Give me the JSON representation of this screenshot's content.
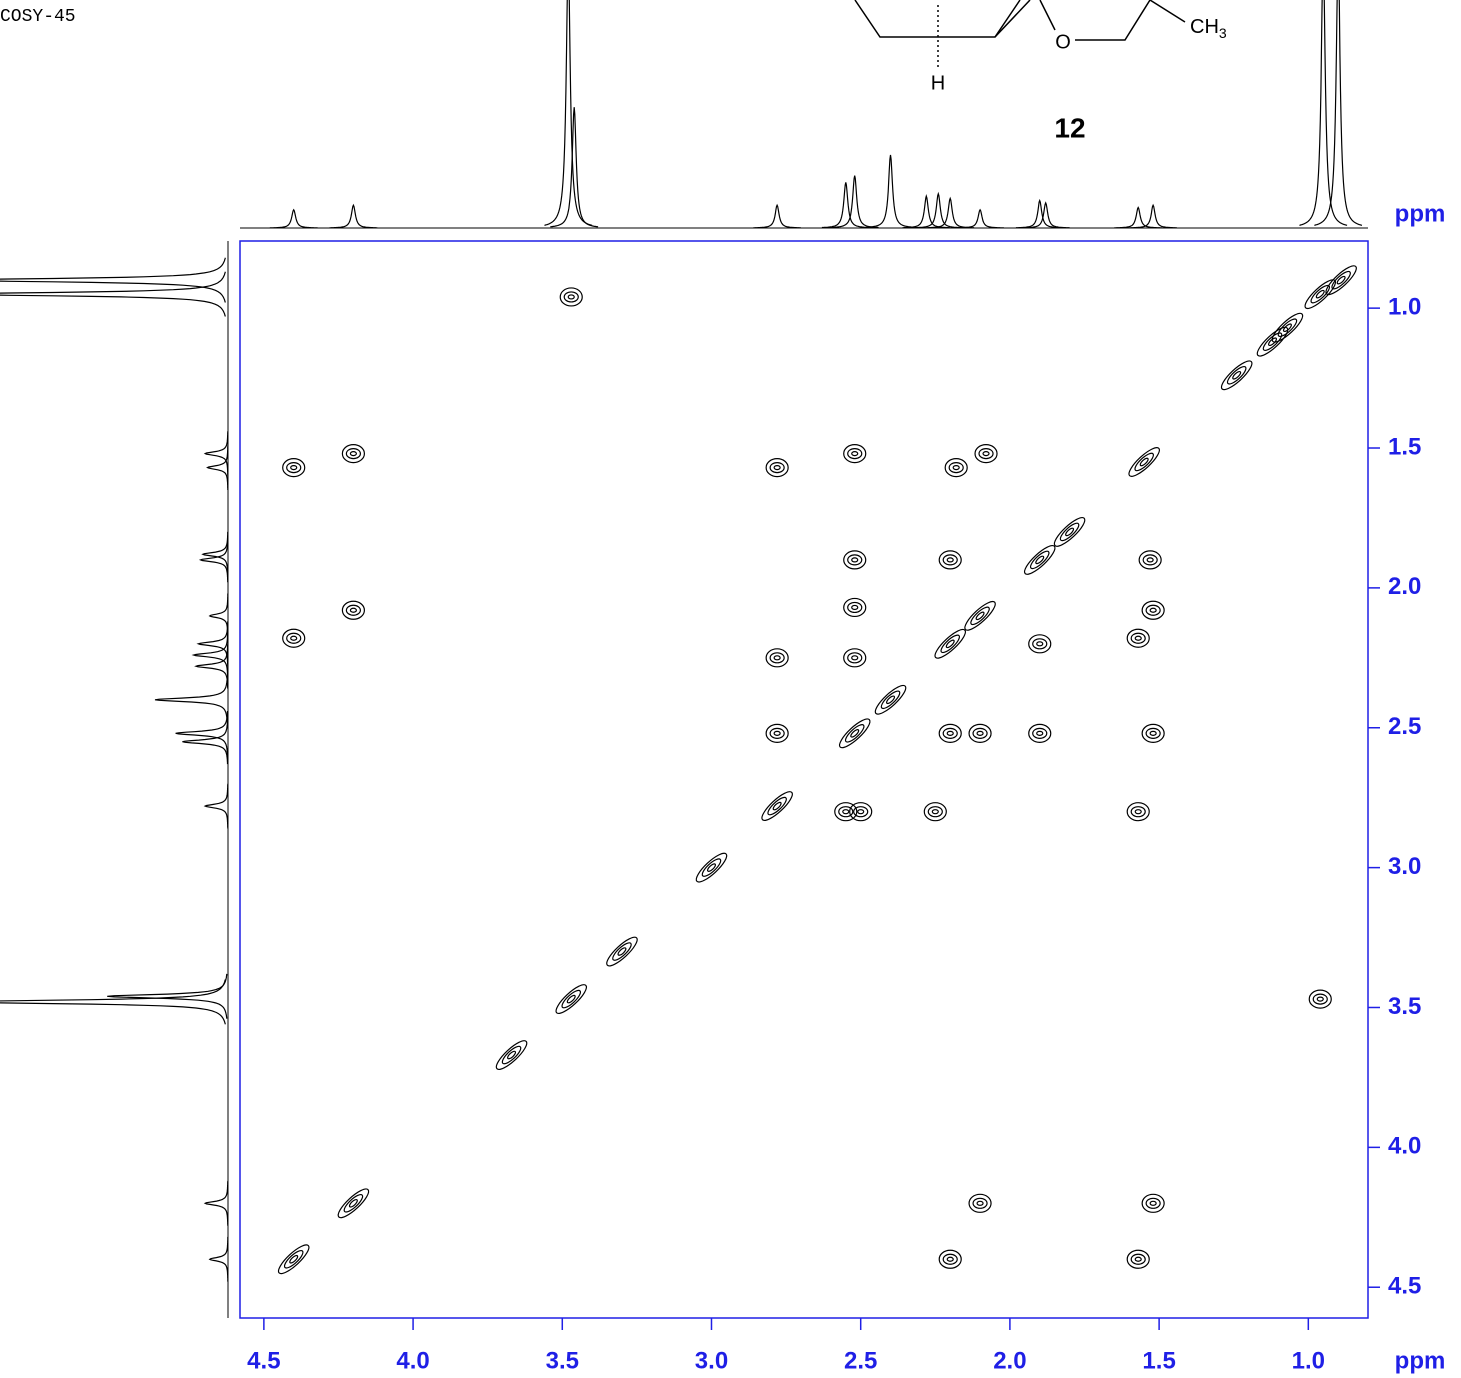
{
  "chart_data": {
    "type": "scatter",
    "title": "COSY-45",
    "x_label": "ppm",
    "y_label": "ppm",
    "xlim": [
      4.58,
      0.8
    ],
    "ylim": [
      0.76,
      4.61
    ],
    "xticks": [
      4.5,
      {
        "value": 4,
        "label": "4.0"
      },
      3.5,
      {
        "value": 3,
        "label": "3.0"
      },
      2.5,
      {
        "value": 2,
        "label": "2.0"
      },
      1.5,
      {
        "value": 1,
        "label": "1.0"
      }
    ],
    "yticks": [
      {
        "value": 1,
        "label": "1.0"
      },
      1.5,
      {
        "value": 2,
        "label": "2.0"
      },
      2.5,
      {
        "value": 3,
        "label": "3.0"
      },
      3.5,
      {
        "value": 4,
        "label": "4.0"
      },
      4.5
    ],
    "x": [
      0.89,
      0.96,
      1.07,
      1.12,
      1.24,
      1.55,
      1.8,
      1.9,
      2.1,
      2.2,
      2.4,
      2.52,
      2.78,
      3.0,
      3.3,
      3.47,
      3.67,
      4.2,
      4.4,
      4.4,
      4.2,
      4.4,
      4.2,
      2.78,
      2.52,
      2.18,
      2.08,
      2.52,
      2.2,
      1.53,
      2.52,
      1.52,
      1.57,
      1.9,
      2.78,
      2.52,
      2.78,
      2.2,
      2.1,
      1.9,
      1.52,
      2.55,
      2.5,
      2.25,
      1.57,
      2.1,
      1.52,
      2.2,
      1.57,
      3.47,
      0.96
    ],
    "y": [
      0.9,
      0.95,
      1.07,
      1.12,
      1.24,
      1.55,
      1.8,
      1.9,
      2.1,
      2.2,
      2.4,
      2.52,
      2.78,
      3.0,
      3.3,
      3.47,
      3.67,
      4.2,
      4.4,
      1.57,
      1.52,
      2.18,
      2.08,
      1.57,
      1.52,
      1.57,
      1.52,
      1.9,
      1.9,
      1.9,
      2.07,
      2.08,
      2.18,
      2.2,
      2.25,
      2.25,
      2.52,
      2.52,
      2.52,
      2.52,
      2.52,
      2.8,
      2.8,
      2.8,
      2.8,
      4.2,
      4.2,
      4.4,
      4.4,
      0.96,
      3.47
    ],
    "color": "#000000",
    "axis_color": "#1f1fe6",
    "projection": {
      "ppm": [
        4.4,
        4.2,
        3.48,
        3.46,
        2.78,
        2.55,
        2.52,
        2.4,
        2.28,
        2.24,
        2.2,
        2.1,
        1.9,
        1.88,
        1.57,
        1.52,
        0.95,
        0.9
      ],
      "heights": [
        8,
        10,
        120,
        53,
        10,
        20,
        23,
        32,
        14,
        15,
        13,
        8,
        12,
        11,
        9,
        10,
        120,
        120
      ]
    }
  },
  "structure": {
    "label": "12",
    "atom_o": "O",
    "atom_h": "H",
    "methyl": "CH",
    "methyl_subscript": "3"
  }
}
